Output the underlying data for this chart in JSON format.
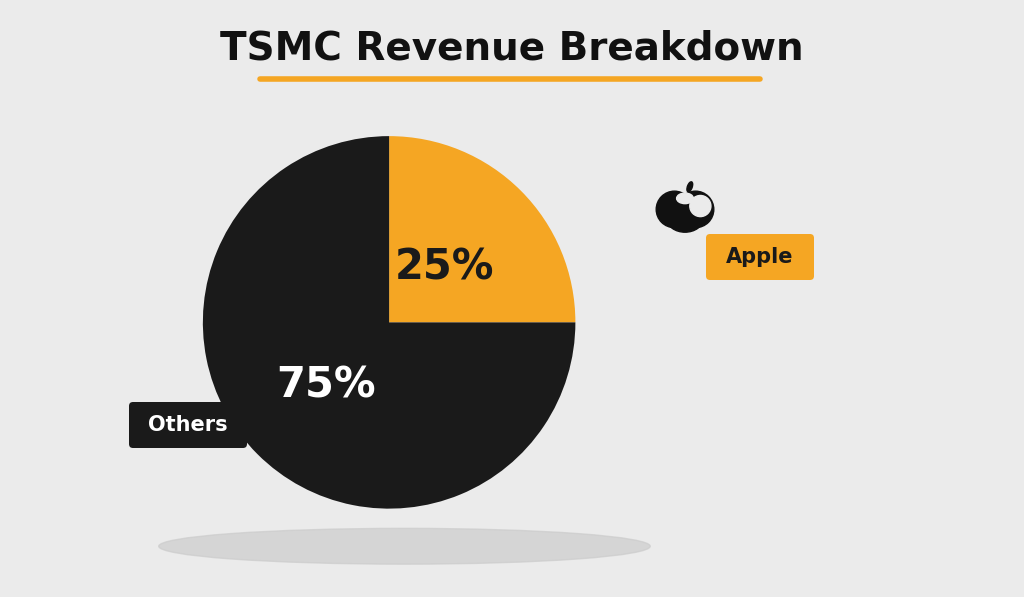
{
  "title": "TSMC Revenue Breakdown",
  "title_fontsize": 28,
  "title_fontweight": "bold",
  "underline_color": "#F5A623",
  "background_color": "#EBEBEB",
  "slices": [
    25,
    75
  ],
  "colors": [
    "#F5A623",
    "#1A1A1A"
  ],
  "pct_labels": [
    "25%",
    "75%"
  ],
  "pct_colors": [
    "#1A1A1A",
    "#FFFFFF"
  ],
  "pct_fontsize": 30,
  "pct_fontweight": "bold",
  "apple_label_bg": "#F5A623",
  "apple_label_text_color": "#1A1A1A",
  "others_label_bg": "#1A1A1A",
  "others_label_text_color": "#FFFFFF",
  "label_fontsize": 15,
  "label_fontweight": "bold"
}
